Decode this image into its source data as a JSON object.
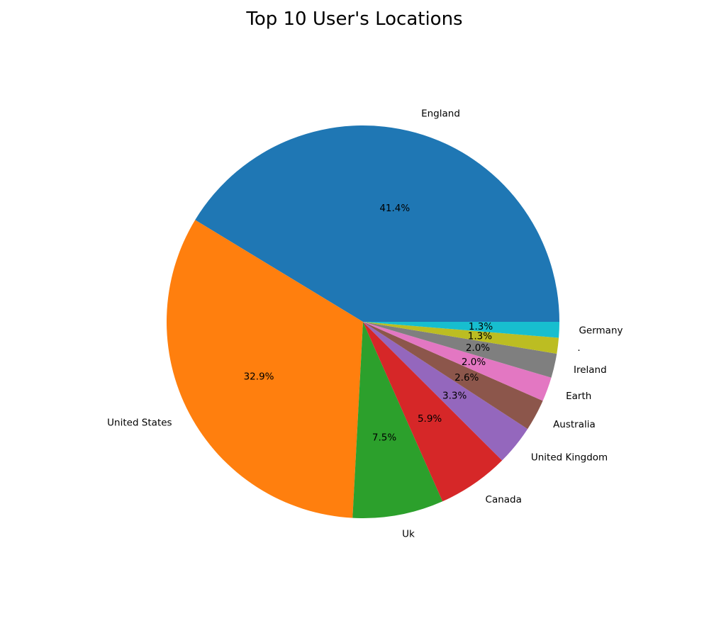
{
  "chart_data": {
    "type": "pie",
    "title": "Top 10 User's Locations",
    "start_angle_deg": 0,
    "direction": "counterclockwise",
    "slices": [
      {
        "label": "England",
        "percent": 41.4,
        "pct_text": "41.4%",
        "color": "#1f77b4"
      },
      {
        "label": "United States",
        "percent": 32.9,
        "pct_text": "32.9%",
        "color": "#ff7f0e"
      },
      {
        "label": "Uk",
        "percent": 7.5,
        "pct_text": "7.5%",
        "color": "#2ca02c"
      },
      {
        "label": "Canada",
        "percent": 5.9,
        "pct_text": "5.9%",
        "color": "#d62728"
      },
      {
        "label": "United Kingdom",
        "percent": 3.3,
        "pct_text": "3.3%",
        "color": "#9467bd"
      },
      {
        "label": "Australia",
        "percent": 2.6,
        "pct_text": "2.6%",
        "color": "#8c564b"
      },
      {
        "label": "Earth",
        "percent": 2.0,
        "pct_text": "2.0%",
        "color": "#e377c2"
      },
      {
        "label": "Ireland",
        "percent": 2.0,
        "pct_text": "2.0%",
        "color": "#7f7f7f"
      },
      {
        "label": ".",
        "percent": 1.3,
        "pct_text": "1.3%",
        "color": "#bcbd22"
      },
      {
        "label": "Germany",
        "percent": 1.3,
        "pct_text": "1.3%",
        "color": "#17becf"
      }
    ]
  }
}
